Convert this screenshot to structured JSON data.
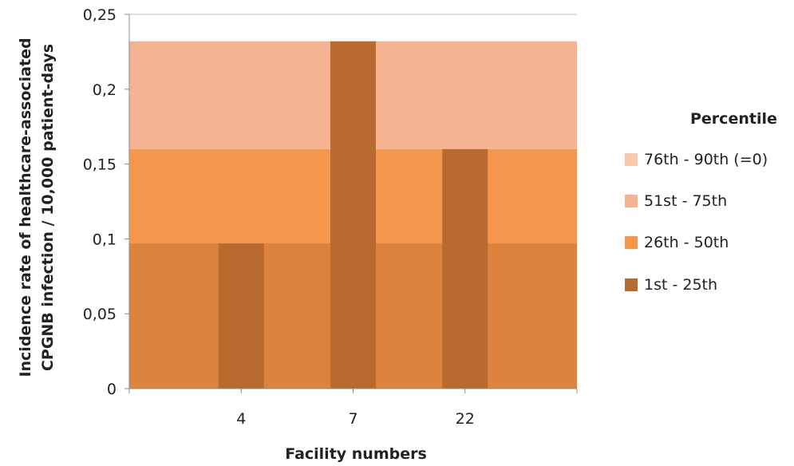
{
  "chart_data": {
    "type": "bar",
    "title": "",
    "xlabel": "Facility numbers",
    "ylabel_lines": [
      "Incidence rate of healthcare-associated",
      "CPGNB infection / 10,000 patient-days"
    ],
    "ylim": [
      0,
      0.25
    ],
    "yticks": [
      "0",
      "0,05",
      "0,1",
      "0,15",
      "0,2",
      "0,25"
    ],
    "ytick_values": [
      0,
      0.05,
      0.1,
      0.15,
      0.2,
      0.25
    ],
    "categories": [
      "4",
      "7",
      "22"
    ],
    "category_positions": [
      1,
      2,
      3
    ],
    "x_range": [
      0,
      4
    ],
    "values": [
      0.097,
      0.232,
      0.16
    ],
    "bar_color": "#b96b2f",
    "grid": false,
    "percentile_bands": [
      {
        "name": "1st - 25th",
        "from": 0,
        "to": 0.097,
        "color": "#dc843e"
      },
      {
        "name": "26th - 50th",
        "from": 0.097,
        "to": 0.16,
        "color": "#f4964b"
      },
      {
        "name": "51st - 75th",
        "from": 0.16,
        "to": 0.232,
        "color": "#f6b391"
      },
      {
        "name": "76th - 90th (=0)",
        "from": 0.232,
        "to": 0.232,
        "color": "#f9c9ad"
      }
    ],
    "legend": {
      "title": "Percentile",
      "position": "right",
      "items": [
        {
          "label": "76th - 90th (=0)",
          "color": "#f9c9ad"
        },
        {
          "label": "51st - 75th",
          "color": "#f6b391"
        },
        {
          "label": "26th - 50th",
          "color": "#f4964b"
        },
        {
          "label": "1st - 25th",
          "color": "#b96b2f"
        }
      ]
    }
  }
}
